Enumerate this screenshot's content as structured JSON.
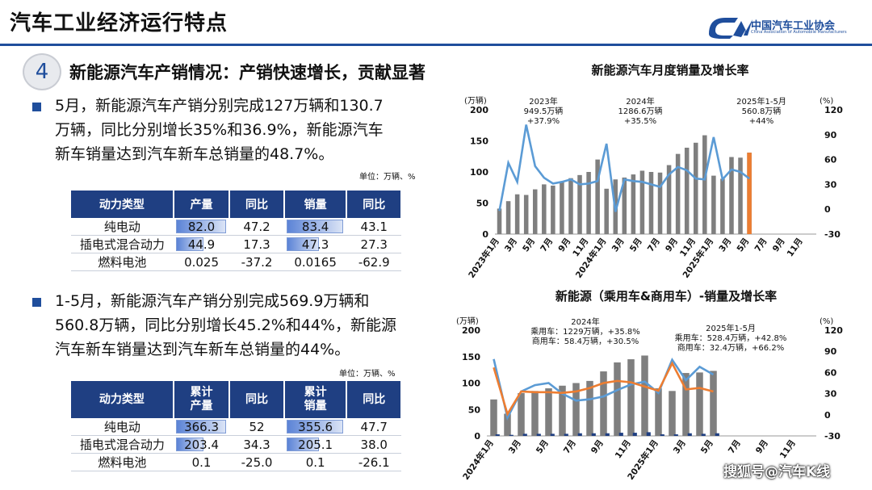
{
  "header": {
    "title": "汽车工业经济运行特点",
    "logo_cn": "中国汽车工业协会",
    "logo_en": "China Association of Automobile Manufacturers"
  },
  "section": {
    "number": "4",
    "heading": "新能源汽车产销情况：产销快速增长，贡献显著"
  },
  "para1": {
    "lines": [
      "5月，新能源汽车产销分别完成127万辆和130.7",
      "万辆，同比分别增长35%和36.9%，新能源汽车",
      "新车销量达到汽车新车总销量的48.7%。"
    ]
  },
  "table1": {
    "unit": "单位：万辆、%",
    "headers": [
      "动力类型",
      "产量",
      "同比",
      "销量",
      "同比"
    ],
    "rows": [
      {
        "type": "纯电动",
        "prod": "82.0",
        "prod_share": 1.0,
        "prod_yoy": "47.2",
        "sales": "83.4",
        "sales_share": 1.0,
        "sales_yoy": "43.1"
      },
      {
        "type": "插电式混合动力",
        "prod": "44.9",
        "prod_share": 0.55,
        "prod_yoy": "17.3",
        "sales": "47.3",
        "sales_share": 0.57,
        "sales_yoy": "27.3"
      },
      {
        "type": "燃料电池",
        "prod": "0.025",
        "prod_share": 0,
        "prod_yoy": "-37.2",
        "sales": "0.0165",
        "sales_share": 0,
        "sales_yoy": "-62.9"
      }
    ]
  },
  "para2": {
    "lines": [
      "1-5月，新能源汽车产销分别完成569.9万辆和",
      "560.8万辆，同比分别增长45.2%和44%，新能源",
      "汽车新车销量达到汽车新车总销量的44%。"
    ]
  },
  "table2": {
    "unit": "单位：万辆、%",
    "headers": [
      "动力类型",
      "累计产量",
      "同比",
      "累计销量",
      "同比"
    ],
    "header_lines": [
      [
        "动力类型"
      ],
      [
        "累计",
        "产量"
      ],
      [
        "同比"
      ],
      [
        "累计",
        "销量"
      ],
      [
        "同比"
      ]
    ],
    "rows": [
      {
        "type": "纯电动",
        "prod": "366.3",
        "prod_share": 1.0,
        "prod_yoy": "52",
        "sales": "355.6",
        "sales_share": 1.0,
        "sales_yoy": "47.7"
      },
      {
        "type": "插电式混合动力",
        "prod": "203.4",
        "prod_share": 0.55,
        "prod_yoy": "34.3",
        "sales": "205.1",
        "sales_share": 0.57,
        "sales_yoy": "38.0"
      },
      {
        "type": "燃料电池",
        "prod": "0.1",
        "prod_share": 0,
        "prod_yoy": "-25.0",
        "sales": "0.1",
        "sales_share": 0,
        "sales_yoy": "-26.1"
      }
    ]
  },
  "chart_data": [
    {
      "type": "bar",
      "title": "新能源汽车月度销量及增长率",
      "ylabel_left": "(万辆)",
      "ylabel_right": "(%)",
      "ylim": [
        0,
        200
      ],
      "ylim_right": [
        -30,
        120
      ],
      "yticks": [
        "0",
        "50",
        "100",
        "150",
        "200"
      ],
      "yticks_right": [
        "-30",
        "0",
        "30",
        "60",
        "90",
        "120"
      ],
      "x_tick_labels": [
        "2023年1月",
        "3月",
        "5月",
        "7月",
        "9月",
        "11月",
        "2024年1月",
        "3月",
        "5月",
        "7月",
        "9月",
        "11月",
        "2025年1月",
        "3月",
        "5月",
        "7月",
        "9月",
        "11月"
      ],
      "series": [
        {
          "kind": "bar",
          "color": "#7f7f7f",
          "values": [
            41,
            53,
            64,
            63,
            72,
            80,
            78,
            84,
            90,
            95,
            100,
            120,
            73,
            88,
            91,
            96,
            102,
            100,
            99,
            111,
            129,
            139,
            147,
            159,
            94,
            89,
            124,
            123,
            131
          ]
        },
        {
          "kind": "line",
          "axis": "right",
          "color": "#5b9bd5",
          "values": [
            -2,
            56,
            33,
            102,
            52,
            38,
            31,
            33,
            36,
            30,
            31,
            34,
            79,
            -3,
            36,
            34,
            33,
            30,
            27,
            42,
            51,
            47,
            37,
            36,
            87,
            36,
            48,
            45,
            37
          ]
        },
        {
          "kind": "bar",
          "color": "#ed7d31",
          "highlight": true,
          "values": [
            null,
            null,
            null,
            null,
            null,
            null,
            null,
            null,
            null,
            null,
            null,
            null,
            null,
            null,
            null,
            null,
            null,
            null,
            null,
            null,
            null,
            null,
            null,
            null,
            null,
            null,
            null,
            null,
            131
          ]
        }
      ],
      "annotations": [
        {
          "lines": [
            "2023年",
            "949.5万辆",
            "+37.9%"
          ]
        },
        {
          "lines": [
            "2024年",
            "1286.6万辆",
            "+35.5%"
          ]
        },
        {
          "lines": [
            "2025年1-5月",
            "560.8万辆",
            "+44%"
          ]
        }
      ]
    },
    {
      "type": "bar",
      "title": "新能源（乘用车&商用车）-销量及增长率",
      "ylabel_left": "(万辆)",
      "ylabel_right": "(%)",
      "ylim": [
        0,
        200
      ],
      "ylim_right": [
        -30,
        120
      ],
      "yticks": [
        "0",
        "50",
        "100",
        "150",
        "200"
      ],
      "yticks_right": [
        "-30",
        "0",
        "30",
        "60",
        "90",
        "120"
      ],
      "x_tick_labels": [
        "2024年1月",
        "3月",
        "5月",
        "7月",
        "9月",
        "11月",
        "2025年1月",
        "3月",
        "5月",
        "7月",
        "9月",
        "11月"
      ],
      "series": [
        {
          "kind": "bar",
          "color": "#7f7f7f",
          "values": [
            69,
            42,
            81,
            85,
            90,
            95,
            100,
            104,
            122,
            139,
            145,
            152,
            90,
            85,
            119,
            120,
            123
          ]
        },
        {
          "kind": "bar",
          "color": "#1f3f82",
          "values": [
            3,
            2,
            4,
            4,
            4,
            4,
            5,
            5,
            5,
            6,
            6,
            7,
            3,
            3,
            5,
            4,
            5
          ]
        },
        {
          "kind": "line",
          "axis": "right",
          "color": "#5b9bd5",
          "values": [
            79,
            -4,
            33,
            42,
            45,
            30,
            20,
            22,
            26,
            35,
            43,
            47,
            31,
            78,
            49,
            68,
            57
          ]
        },
        {
          "kind": "line",
          "axis": "right",
          "color": "#ed7d31",
          "values": [
            67,
            1,
            33,
            32,
            32,
            31,
            33,
            38,
            45,
            48,
            46,
            40,
            34,
            73,
            36,
            38,
            33
          ]
        }
      ],
      "annotations": [
        {
          "lines": [
            "2024年",
            "乘用车：1229万辆，+35.8%",
            "商用车：58.4万辆，+30.5%"
          ]
        },
        {
          "lines": [
            "2025年1-5月",
            "乘用车：528.4万辆，+42.8%",
            "商用车：32.4万辆，+66.2%"
          ]
        }
      ]
    }
  ],
  "watermark": "搜狐号@汽车K线"
}
